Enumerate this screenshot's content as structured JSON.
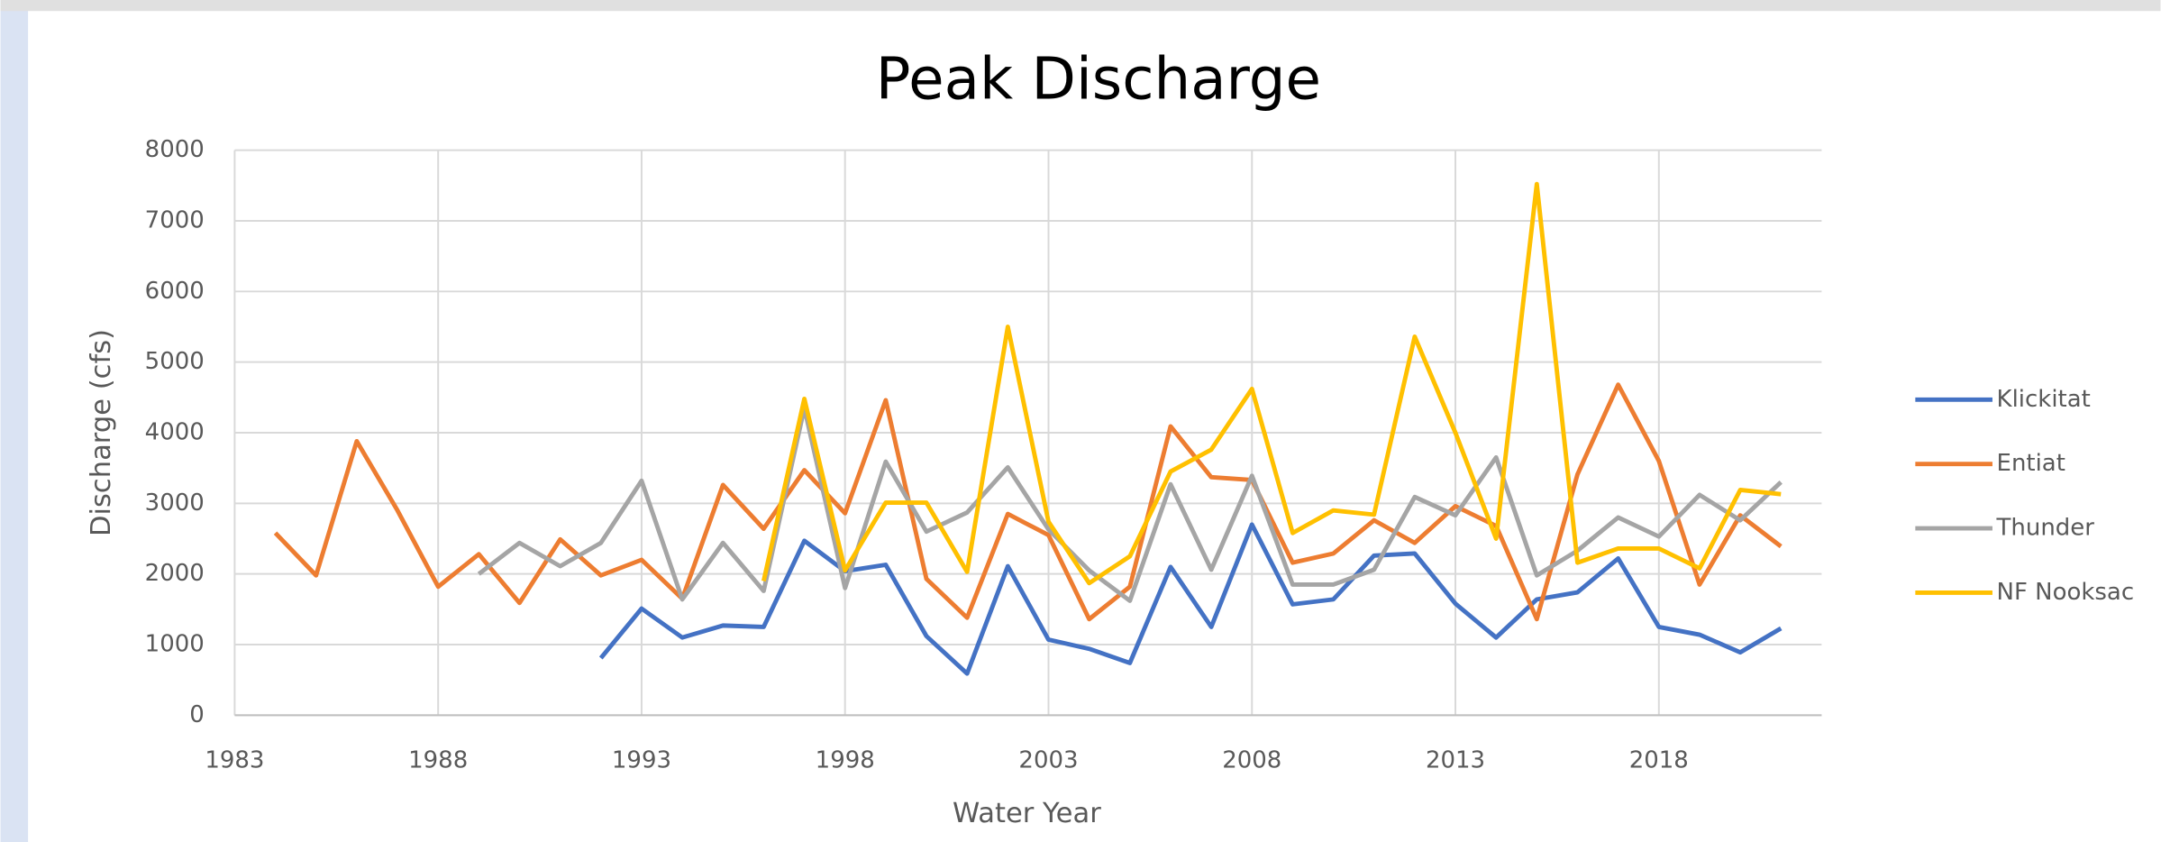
{
  "chart_data": {
    "type": "line",
    "title": "Peak Discharge",
    "x_label": "Water Year",
    "y_label": "Discharge (cfs)",
    "x": [
      1984,
      1985,
      1986,
      1987,
      1988,
      1989,
      1990,
      1991,
      1992,
      1993,
      1994,
      1995,
      1996,
      1997,
      1998,
      1999,
      2000,
      2001,
      2002,
      2003,
      2004,
      2005,
      2006,
      2007,
      2008,
      2009,
      2010,
      2011,
      2012,
      2013,
      2014,
      2015,
      2016,
      2017,
      2018,
      2019,
      2020,
      2021
    ],
    "series": [
      {
        "name": "Klickitat",
        "color": "#4472c4",
        "values": [
          null,
          null,
          null,
          null,
          null,
          null,
          null,
          null,
          810,
          1510,
          1100,
          1270,
          1250,
          2470,
          2040,
          2130,
          1120,
          590,
          2110,
          1070,
          940,
          740,
          2100,
          1250,
          2700,
          1570,
          1640,
          2260,
          2290,
          1580,
          1100,
          1640,
          1740,
          2220,
          1250,
          1140,
          890,
          1230
        ]
      },
      {
        "name": "Entiat",
        "color": "#ed7d31",
        "values": [
          2580,
          1980,
          3880,
          2900,
          1820,
          2280,
          1590,
          2490,
          1980,
          2200,
          1650,
          3260,
          2640,
          3470,
          2860,
          4460,
          1930,
          1380,
          2850,
          2550,
          1360,
          1820,
          4090,
          3370,
          3330,
          2160,
          2290,
          2760,
          2440,
          2960,
          2680,
          1360,
          3410,
          4680,
          3600,
          1850,
          2830,
          2390
        ]
      },
      {
        "name": "Thunder",
        "color": "#a5a5a5",
        "values": [
          null,
          null,
          null,
          null,
          null,
          2000,
          2440,
          2110,
          2440,
          3320,
          1640,
          2440,
          1760,
          4350,
          1800,
          3590,
          2600,
          2870,
          3510,
          2630,
          2050,
          1620,
          3270,
          2060,
          3390,
          1850,
          1850,
          2060,
          3090,
          2830,
          3650,
          1980,
          2330,
          2800,
          2530,
          3120,
          2760,
          3300
        ]
      },
      {
        "name": "NF Nooksac",
        "color": "#ffc000",
        "values": [
          null,
          null,
          null,
          null,
          null,
          null,
          null,
          null,
          null,
          null,
          null,
          null,
          1900,
          4480,
          2050,
          3010,
          3010,
          2030,
          5500,
          2740,
          1870,
          2250,
          3450,
          3760,
          4620,
          2580,
          2900,
          2840,
          5360,
          4000,
          2500,
          7520,
          2160,
          2360,
          2360,
          2080,
          3190,
          3130
        ]
      }
    ],
    "xlim": [
      1983,
      2022
    ],
    "xticks": [
      1983,
      1988,
      1993,
      1998,
      2003,
      2008,
      2013,
      2018
    ],
    "ylim": [
      0,
      8000
    ],
    "yticks": [
      0,
      1000,
      2000,
      3000,
      4000,
      5000,
      6000,
      7000,
      8000
    ],
    "grid": true,
    "legend": "right"
  }
}
